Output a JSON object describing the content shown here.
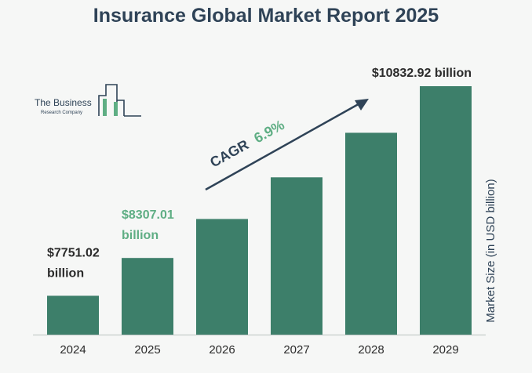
{
  "colors": {
    "bar": "#3d7f6a",
    "title": "#2f4357",
    "label_dark": "#2b2b2b",
    "label_accent": "#5fae84",
    "baseline": "#b9c2c0"
  },
  "logo": {
    "line1": "The Business",
    "line2": "Research Company"
  },
  "cagr": {
    "label": "CAGR",
    "value": "6.9%"
  },
  "chart_data": {
    "type": "bar",
    "title": "Insurance Global Market Report 2025",
    "xlabel": "",
    "ylabel": "Market Size (in USD billion)",
    "categories": [
      "2024",
      "2025",
      "2026",
      "2027",
      "2028",
      "2029"
    ],
    "values": [
      7751.02,
      8307.01,
      8880.19,
      9492.92,
      10147.93,
      10832.92
    ],
    "ylim": [
      7180,
      10832.92
    ],
    "grid": false,
    "legend": "none",
    "data_labels": [
      {
        "index": 0,
        "line1": "$7751.02",
        "line2": "billion",
        "style": "dark"
      },
      {
        "index": 1,
        "line1": "$8307.01",
        "line2": "billion",
        "style": "accent"
      },
      {
        "index": 5,
        "line1": "$10832.92 billion",
        "line2": "",
        "style": "dark"
      }
    ]
  }
}
